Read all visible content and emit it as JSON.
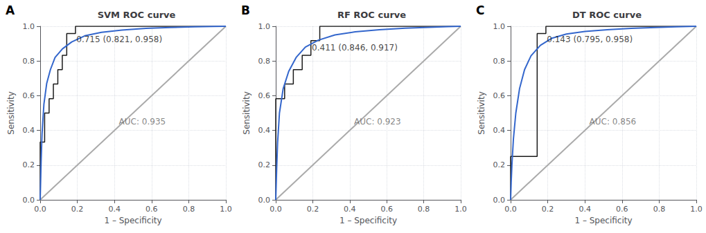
{
  "chart_data": [
    {
      "type": "line",
      "title": "SVM ROC curve",
      "xlabel": "1 – Specificity",
      "ylabel": "Sensitivity",
      "xlim": [
        0,
        1
      ],
      "ylim": [
        0,
        1
      ],
      "xticks": [
        {
          "value": 0,
          "label": "0.0"
        },
        0.2,
        0.4,
        0.6,
        0.8,
        {
          "value": 1,
          "label": "1.0"
        }
      ],
      "yticks": [
        {
          "value": 0,
          "label": "0.0"
        },
        0.2,
        0.4,
        0.6,
        0.8,
        {
          "value": 1,
          "label": "1.0"
        }
      ],
      "grid": true,
      "annotations": [
        {
          "text": "A"
        },
        {
          "text": "AUC: 0.935",
          "x": 0.55,
          "y": 0.45,
          "color": "#666666"
        },
        {
          "text": "0.715 (0.821, 0.958)",
          "x": 0.195,
          "y": 0.925,
          "color": "#111111"
        }
      ],
      "series": [
        {
          "type": "line",
          "color": "#aaaaaa",
          "x": [
            0,
            1
          ],
          "values": [
            0,
            1
          ]
        },
        {
          "type": "step",
          "color": "#1a1a1a",
          "x": [
            0.0,
            0.0,
            0.024,
            0.024,
            0.048,
            0.048,
            0.071,
            0.071,
            0.095,
            0.095,
            0.119,
            0.119,
            0.143,
            0.143,
            0.167,
            0.167,
            0.19,
            0.19,
            0.333,
            0.333,
            1.0,
            1.0
          ],
          "values": [
            0.0,
            0.333,
            0.333,
            0.5,
            0.5,
            0.583,
            0.583,
            0.667,
            0.667,
            0.75,
            0.75,
            0.833,
            0.833,
            0.958,
            0.958,
            0.958,
            0.958,
            1.0,
            1.0,
            1.0,
            1.0,
            1.0
          ]
        },
        {
          "type": "line",
          "color": "#3366cc",
          "x": [
            0.0,
            0.005,
            0.01,
            0.02,
            0.035,
            0.055,
            0.08,
            0.12,
            0.17,
            0.24,
            0.33,
            0.44,
            0.57,
            0.7,
            0.83,
            0.93,
            1.0
          ],
          "values": [
            0.0,
            0.22,
            0.38,
            0.55,
            0.67,
            0.75,
            0.82,
            0.87,
            0.91,
            0.945,
            0.965,
            0.978,
            0.988,
            0.993,
            0.997,
            0.999,
            1.0
          ]
        }
      ]
    },
    {
      "type": "line",
      "title": "RF ROC curve",
      "xlabel": "1 – Specificity",
      "ylabel": "Sensitivity",
      "xlim": [
        0,
        1
      ],
      "ylim": [
        0,
        1
      ],
      "xticks": [
        {
          "value": 0,
          "label": "0.0"
        },
        0.2,
        0.4,
        0.6,
        0.8,
        {
          "value": 1,
          "label": "1.0"
        }
      ],
      "yticks": [
        {
          "value": 0,
          "label": "0.0"
        },
        0.2,
        0.4,
        0.6,
        0.8,
        {
          "value": 1,
          "label": "1.0"
        }
      ],
      "grid": true,
      "annotations": [
        {
          "text": "B"
        },
        {
          "text": "AUC: 0.923",
          "x": 0.55,
          "y": 0.45,
          "color": "#666666"
        },
        {
          "text": "0.411 (0.846, 0.917)",
          "x": 0.195,
          "y": 0.875,
          "color": "#111111"
        }
      ],
      "series": [
        {
          "type": "line",
          "color": "#aaaaaa",
          "x": [
            0,
            1
          ],
          "values": [
            0,
            1
          ]
        },
        {
          "type": "step",
          "color": "#1a1a1a",
          "x": [
            0.0,
            0.0,
            0.048,
            0.048,
            0.095,
            0.095,
            0.143,
            0.143,
            0.19,
            0.19,
            0.238,
            0.238,
            0.381,
            0.381,
            0.429,
            0.429,
            1.0,
            1.0
          ],
          "values": [
            0.0,
            0.583,
            0.583,
            0.667,
            0.667,
            0.75,
            0.75,
            0.833,
            0.833,
            0.917,
            0.917,
            1.0,
            1.0,
            1.0,
            1.0,
            1.0,
            1.0,
            1.0
          ]
        },
        {
          "type": "line",
          "color": "#3366cc",
          "x": [
            0.0,
            0.005,
            0.01,
            0.02,
            0.04,
            0.07,
            0.11,
            0.16,
            0.23,
            0.32,
            0.43,
            0.56,
            0.7,
            0.83,
            0.93,
            1.0
          ],
          "values": [
            0.0,
            0.18,
            0.33,
            0.5,
            0.64,
            0.74,
            0.82,
            0.88,
            0.92,
            0.95,
            0.968,
            0.98,
            0.989,
            0.994,
            0.998,
            1.0
          ]
        }
      ]
    },
    {
      "type": "line",
      "title": "DT ROC curve",
      "xlabel": "1 – Specificity",
      "ylabel": "Sensitivity",
      "xlim": [
        0,
        1
      ],
      "ylim": [
        0,
        1
      ],
      "xticks": [
        {
          "value": 0,
          "label": "0.0"
        },
        0.2,
        0.4,
        0.6,
        0.8,
        {
          "value": 1,
          "label": "1.0"
        }
      ],
      "yticks": [
        {
          "value": 0,
          "label": "0.0"
        },
        0.2,
        0.4,
        0.6,
        0.8,
        {
          "value": 1,
          "label": "1.0"
        }
      ],
      "grid": true,
      "annotations": [
        {
          "text": "C"
        },
        {
          "text": "AUC: 0.856",
          "x": 0.55,
          "y": 0.45,
          "color": "#666666"
        },
        {
          "text": "0.143 (0.795, 0.958)",
          "x": 0.195,
          "y": 0.925,
          "color": "#111111"
        }
      ],
      "series": [
        {
          "type": "line",
          "color": "#aaaaaa",
          "x": [
            0,
            1
          ],
          "values": [
            0,
            1
          ]
        },
        {
          "type": "step",
          "color": "#1a1a1a",
          "x": [
            0.0,
            0.0,
            0.0,
            0.024,
            0.024,
            0.048,
            0.048,
            0.143,
            0.143,
            0.19,
            0.19,
            0.19,
            1.0,
            1.0
          ],
          "values": [
            0.0,
            0.0,
            0.25,
            0.25,
            0.25,
            0.25,
            0.25,
            0.25,
            0.958,
            0.958,
            0.958,
            1.0,
            1.0,
            1.0
          ]
        },
        {
          "type": "line",
          "color": "#3366cc",
          "x": [
            0.0,
            0.003,
            0.007,
            0.015,
            0.028,
            0.048,
            0.075,
            0.11,
            0.16,
            0.22,
            0.3,
            0.4,
            0.52,
            0.65,
            0.78,
            0.89,
            0.96,
            1.0
          ],
          "values": [
            0.0,
            0.1,
            0.2,
            0.35,
            0.5,
            0.64,
            0.75,
            0.83,
            0.89,
            0.93,
            0.955,
            0.97,
            0.98,
            0.988,
            0.993,
            0.997,
            0.999,
            1.0
          ]
        }
      ]
    }
  ]
}
